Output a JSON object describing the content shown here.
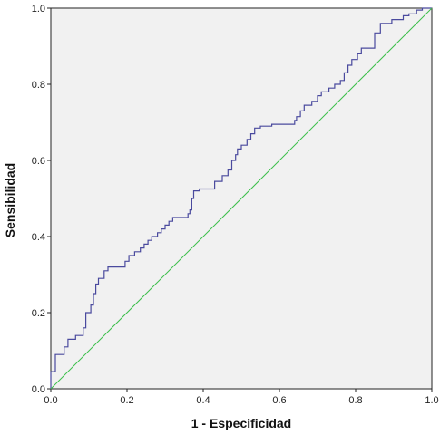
{
  "chart_data": {
    "type": "line",
    "title": "",
    "xlabel": "1 - Especificidad",
    "ylabel": "Sensibilidad",
    "xlim": [
      0,
      1
    ],
    "ylim": [
      0,
      1
    ],
    "xticks": [
      "0.0",
      "0.2",
      "0.4",
      "0.6",
      "0.8",
      "1.0"
    ],
    "yticks": [
      "0.0",
      "0.2",
      "0.4",
      "0.6",
      "0.8",
      "1.0"
    ],
    "grid": false,
    "legend": "none",
    "series": [
      {
        "color": "#4a4a9e",
        "step": true,
        "points": [
          [
            0.0,
            0.0
          ],
          [
            0.0,
            0.045
          ],
          [
            0.012,
            0.045
          ],
          [
            0.012,
            0.09
          ],
          [
            0.035,
            0.09
          ],
          [
            0.035,
            0.11
          ],
          [
            0.045,
            0.11
          ],
          [
            0.045,
            0.13
          ],
          [
            0.065,
            0.13
          ],
          [
            0.065,
            0.14
          ],
          [
            0.085,
            0.14
          ],
          [
            0.085,
            0.16
          ],
          [
            0.092,
            0.16
          ],
          [
            0.092,
            0.2
          ],
          [
            0.105,
            0.2
          ],
          [
            0.105,
            0.22
          ],
          [
            0.112,
            0.22
          ],
          [
            0.112,
            0.25
          ],
          [
            0.118,
            0.25
          ],
          [
            0.118,
            0.275
          ],
          [
            0.125,
            0.275
          ],
          [
            0.125,
            0.29
          ],
          [
            0.14,
            0.29
          ],
          [
            0.14,
            0.31
          ],
          [
            0.15,
            0.31
          ],
          [
            0.15,
            0.32
          ],
          [
            0.195,
            0.32
          ],
          [
            0.195,
            0.335
          ],
          [
            0.205,
            0.335
          ],
          [
            0.205,
            0.35
          ],
          [
            0.22,
            0.35
          ],
          [
            0.22,
            0.36
          ],
          [
            0.235,
            0.36
          ],
          [
            0.235,
            0.37
          ],
          [
            0.245,
            0.37
          ],
          [
            0.245,
            0.38
          ],
          [
            0.255,
            0.38
          ],
          [
            0.255,
            0.39
          ],
          [
            0.265,
            0.39
          ],
          [
            0.265,
            0.4
          ],
          [
            0.28,
            0.4
          ],
          [
            0.28,
            0.41
          ],
          [
            0.29,
            0.41
          ],
          [
            0.29,
            0.42
          ],
          [
            0.3,
            0.42
          ],
          [
            0.3,
            0.43
          ],
          [
            0.31,
            0.43
          ],
          [
            0.31,
            0.44
          ],
          [
            0.32,
            0.44
          ],
          [
            0.32,
            0.45
          ],
          [
            0.36,
            0.45
          ],
          [
            0.36,
            0.46
          ],
          [
            0.365,
            0.46
          ],
          [
            0.365,
            0.47
          ],
          [
            0.37,
            0.47
          ],
          [
            0.37,
            0.5
          ],
          [
            0.375,
            0.5
          ],
          [
            0.375,
            0.52
          ],
          [
            0.39,
            0.52
          ],
          [
            0.39,
            0.525
          ],
          [
            0.43,
            0.525
          ],
          [
            0.43,
            0.545
          ],
          [
            0.45,
            0.545
          ],
          [
            0.45,
            0.56
          ],
          [
            0.465,
            0.56
          ],
          [
            0.465,
            0.575
          ],
          [
            0.475,
            0.575
          ],
          [
            0.475,
            0.6
          ],
          [
            0.485,
            0.6
          ],
          [
            0.485,
            0.615
          ],
          [
            0.49,
            0.615
          ],
          [
            0.49,
            0.63
          ],
          [
            0.5,
            0.63
          ],
          [
            0.5,
            0.64
          ],
          [
            0.515,
            0.64
          ],
          [
            0.515,
            0.655
          ],
          [
            0.525,
            0.655
          ],
          [
            0.525,
            0.67
          ],
          [
            0.535,
            0.67
          ],
          [
            0.535,
            0.685
          ],
          [
            0.55,
            0.685
          ],
          [
            0.55,
            0.69
          ],
          [
            0.58,
            0.69
          ],
          [
            0.58,
            0.695
          ],
          [
            0.64,
            0.695
          ],
          [
            0.64,
            0.705
          ],
          [
            0.645,
            0.705
          ],
          [
            0.645,
            0.715
          ],
          [
            0.655,
            0.715
          ],
          [
            0.655,
            0.73
          ],
          [
            0.665,
            0.73
          ],
          [
            0.665,
            0.745
          ],
          [
            0.685,
            0.745
          ],
          [
            0.685,
            0.755
          ],
          [
            0.7,
            0.755
          ],
          [
            0.7,
            0.77
          ],
          [
            0.71,
            0.77
          ],
          [
            0.71,
            0.78
          ],
          [
            0.73,
            0.78
          ],
          [
            0.73,
            0.79
          ],
          [
            0.745,
            0.79
          ],
          [
            0.745,
            0.8
          ],
          [
            0.76,
            0.8
          ],
          [
            0.76,
            0.81
          ],
          [
            0.77,
            0.81
          ],
          [
            0.77,
            0.83
          ],
          [
            0.78,
            0.83
          ],
          [
            0.78,
            0.85
          ],
          [
            0.79,
            0.85
          ],
          [
            0.79,
            0.865
          ],
          [
            0.805,
            0.865
          ],
          [
            0.805,
            0.88
          ],
          [
            0.815,
            0.88
          ],
          [
            0.815,
            0.895
          ],
          [
            0.85,
            0.895
          ],
          [
            0.85,
            0.935
          ],
          [
            0.865,
            0.935
          ],
          [
            0.865,
            0.96
          ],
          [
            0.895,
            0.96
          ],
          [
            0.895,
            0.97
          ],
          [
            0.925,
            0.97
          ],
          [
            0.925,
            0.98
          ],
          [
            0.94,
            0.98
          ],
          [
            0.94,
            0.985
          ],
          [
            0.96,
            0.985
          ],
          [
            0.96,
            0.995
          ],
          [
            0.975,
            0.995
          ],
          [
            0.975,
            1.0
          ],
          [
            1.0,
            1.0
          ]
        ]
      },
      {
        "color": "#3bbf4a",
        "step": false,
        "points": [
          [
            0,
            0
          ],
          [
            1,
            1
          ]
        ]
      }
    ]
  }
}
